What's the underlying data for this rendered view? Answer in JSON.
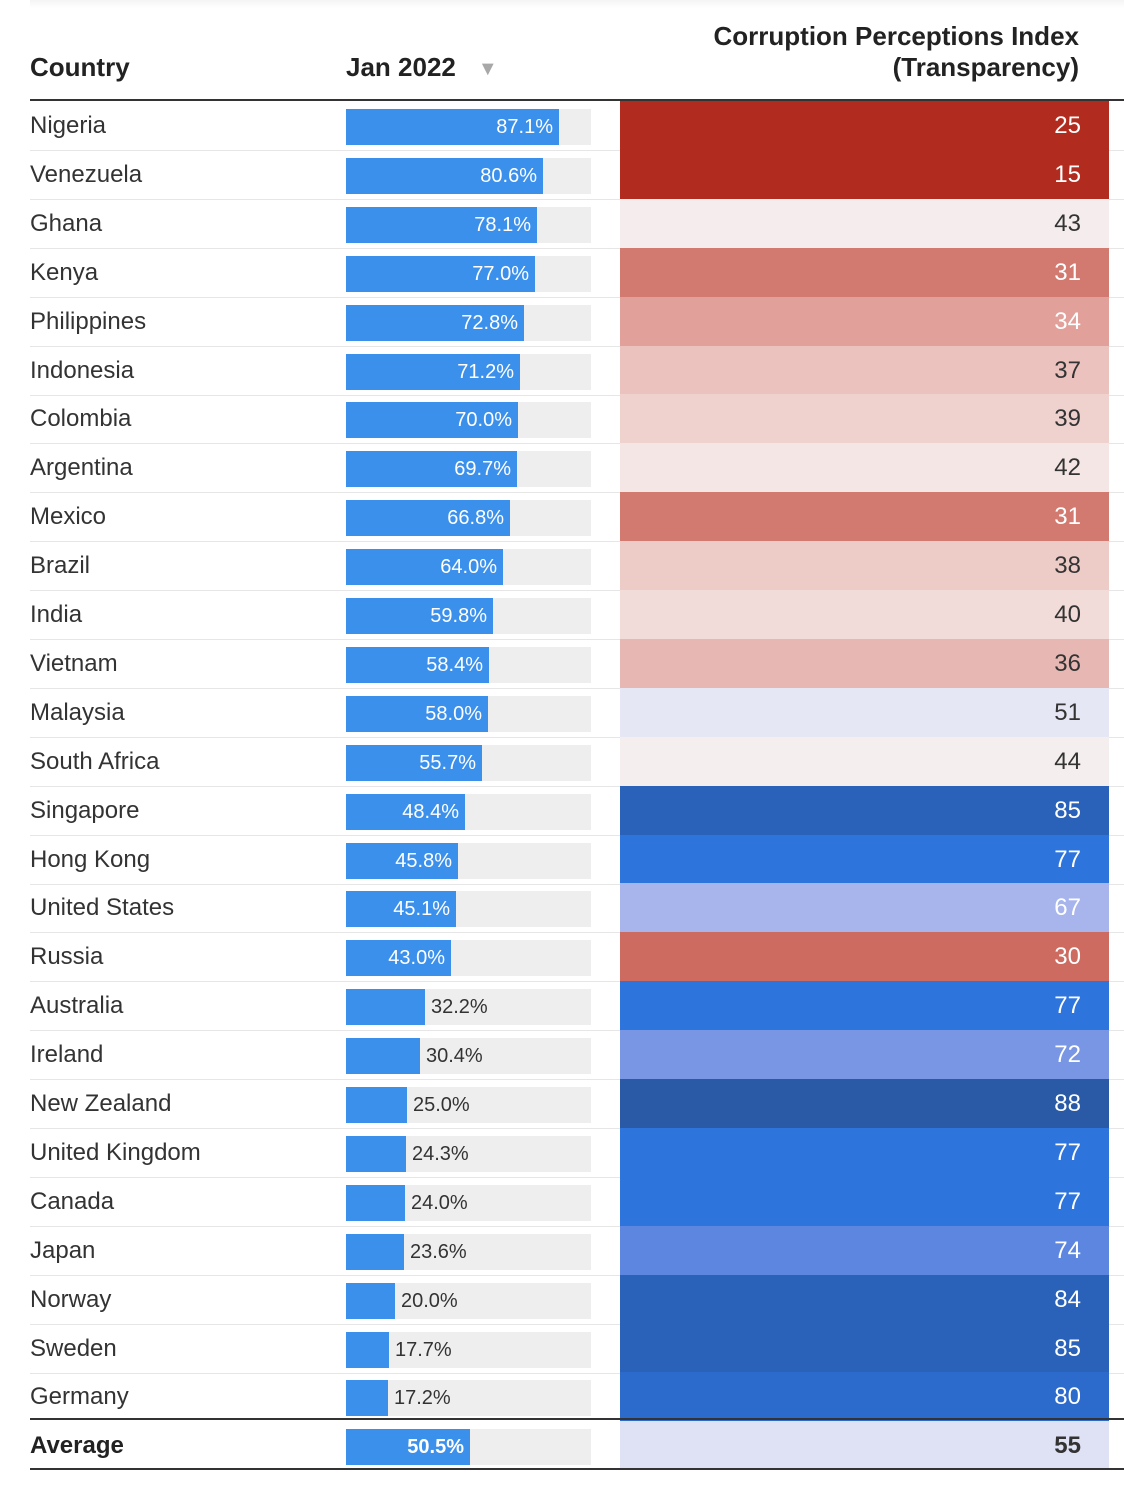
{
  "header": {
    "country": "Country",
    "period": "Jan 2022",
    "sort_glyph": "▼",
    "cpi_line1": "Corruption Perceptions Index",
    "cpi_line2": "(Transparency)"
  },
  "chart_data": {
    "type": "table",
    "columns": [
      "Country",
      "Jan 2022",
      "Corruption Perceptions Index (Transparency)"
    ],
    "bar_scale": [
      0,
      100
    ],
    "rows": [
      {
        "country": "Nigeria",
        "pct": 87.1,
        "pct_label": "87.1%",
        "cpi": 25,
        "cpi_color": "#b12c1f"
      },
      {
        "country": "Venezuela",
        "pct": 80.6,
        "pct_label": "80.6%",
        "cpi": 15,
        "cpi_color": "#b12c1f"
      },
      {
        "country": "Ghana",
        "pct": 78.1,
        "pct_label": "78.1%",
        "cpi": 43,
        "cpi_color": "#f5eded"
      },
      {
        "country": "Kenya",
        "pct": 77.0,
        "pct_label": "77.0%",
        "cpi": 31,
        "cpi_color": "#d37a70"
      },
      {
        "country": "Philippines",
        "pct": 72.8,
        "pct_label": "72.8%",
        "cpi": 34,
        "cpi_color": "#e1a19a"
      },
      {
        "country": "Indonesia",
        "pct": 71.2,
        "pct_label": "71.2%",
        "cpi": 37,
        "cpi_color": "#ebc2bd"
      },
      {
        "country": "Colombia",
        "pct": 70.0,
        "pct_label": "70.0%",
        "cpi": 39,
        "cpi_color": "#efd2ce"
      },
      {
        "country": "Argentina",
        "pct": 69.7,
        "pct_label": "69.7%",
        "cpi": 42,
        "cpi_color": "#f4e6e4"
      },
      {
        "country": "Mexico",
        "pct": 66.8,
        "pct_label": "66.8%",
        "cpi": 31,
        "cpi_color": "#d37a70"
      },
      {
        "country": "Brazil",
        "pct": 64.0,
        "pct_label": "64.0%",
        "cpi": 38,
        "cpi_color": "#edcbc7"
      },
      {
        "country": "India",
        "pct": 59.8,
        "pct_label": "59.8%",
        "cpi": 40,
        "cpi_color": "#f2dcd9"
      },
      {
        "country": "Vietnam",
        "pct": 58.4,
        "pct_label": "58.4%",
        "cpi": 36,
        "cpi_color": "#e7b8b3"
      },
      {
        "country": "Malaysia",
        "pct": 58.0,
        "pct_label": "58.0%",
        "cpi": 51,
        "cpi_color": "#e6e7f4"
      },
      {
        "country": "South Africa",
        "pct": 55.7,
        "pct_label": "55.7%",
        "cpi": 44,
        "cpi_color": "#f5eeee"
      },
      {
        "country": "Singapore",
        "pct": 48.4,
        "pct_label": "48.4%",
        "cpi": 85,
        "cpi_color": "#2a62b9"
      },
      {
        "country": "Hong Kong",
        "pct": 45.8,
        "pct_label": "45.8%",
        "cpi": 77,
        "cpi_color": "#2d74dc"
      },
      {
        "country": "United States",
        "pct": 45.1,
        "pct_label": "45.1%",
        "cpi": 67,
        "cpi_color": "#a7b5ec"
      },
      {
        "country": "Russia",
        "pct": 43.0,
        "pct_label": "43.0%",
        "cpi": 30,
        "cpi_color": "#cd6b61"
      },
      {
        "country": "Australia",
        "pct": 32.2,
        "pct_label": "32.2%",
        "cpi": 77,
        "cpi_color": "#2d74dc"
      },
      {
        "country": "Ireland",
        "pct": 30.4,
        "pct_label": "30.4%",
        "cpi": 72,
        "cpi_color": "#7896e3"
      },
      {
        "country": "New Zealand",
        "pct": 25.0,
        "pct_label": "25.0%",
        "cpi": 88,
        "cpi_color": "#2a5aa5"
      },
      {
        "country": "United Kingdom",
        "pct": 24.3,
        "pct_label": "24.3%",
        "cpi": 77,
        "cpi_color": "#2d74dc"
      },
      {
        "country": "Canada",
        "pct": 24.0,
        "pct_label": "24.0%",
        "cpi": 77,
        "cpi_color": "#2d74dc"
      },
      {
        "country": "Japan",
        "pct": 23.6,
        "pct_label": "23.6%",
        "cpi": 74,
        "cpi_color": "#5c86df"
      },
      {
        "country": "Norway",
        "pct": 20.0,
        "pct_label": "20.0%",
        "cpi": 84,
        "cpi_color": "#2a62b9"
      },
      {
        "country": "Sweden",
        "pct": 17.7,
        "pct_label": "17.7%",
        "cpi": 85,
        "cpi_color": "#2a62b9"
      },
      {
        "country": "Germany",
        "pct": 17.2,
        "pct_label": "17.2%",
        "cpi": 80,
        "cpi_color": "#2c6acb"
      }
    ],
    "average": {
      "country": "Average",
      "pct": 50.5,
      "pct_label": "50.5%",
      "cpi": 55,
      "cpi_color": "#dfe1f5"
    },
    "colors": {
      "bar": "#3b90ec",
      "bar_track": "#eeeeee",
      "low_cpi": "#b12c1f",
      "high_cpi": "#2a5aa5"
    }
  }
}
